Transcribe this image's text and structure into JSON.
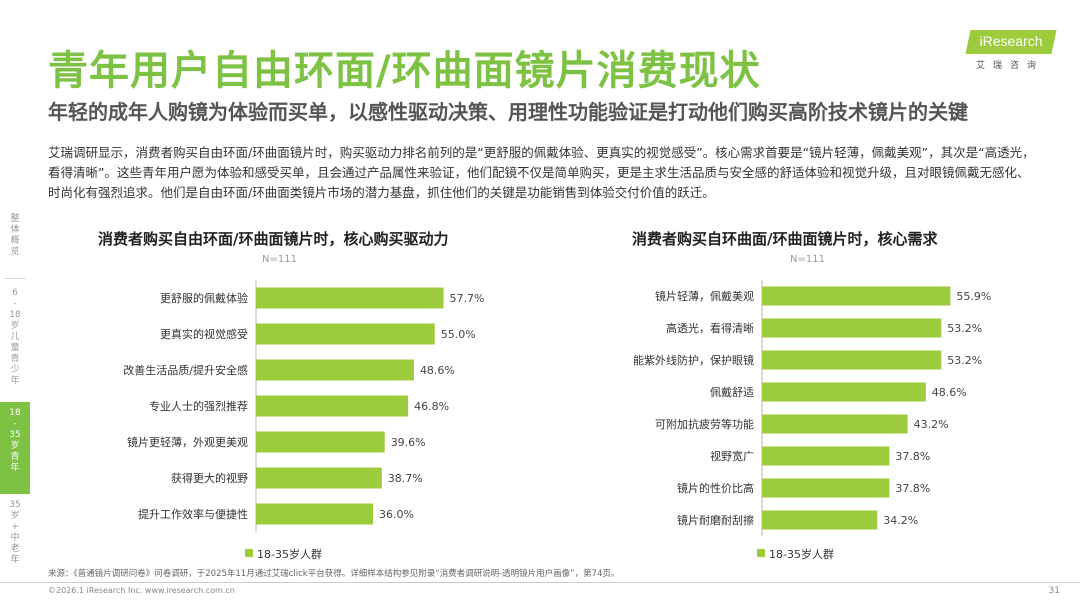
{
  "header": {
    "title": "青年用户自由环面/环曲面镜片消费现状",
    "subtitle": "年轻的成年人购镜为体验而买单，以感性驱动决策、用理性功能验证是打动他们购买高阶技术镜片的关键",
    "description": "艾瑞调研显示，消费者购买自由环面/环曲面镜片时，购买驱动力排名前列的是“更舒服的佩戴体验、更真实的视觉感受”。核心需求首要是“镜片轻薄，佩戴美观”，其次是“高透光，看得清晰”。这些青年用户愿为体验和感受买单，且会通过产品属性来验证，他们配镜不仅是简单购买，更是主求生活品质与安全感的舒适体验和视觉升级，且对眼镜佩戴无感化、时尚化有强烈追求。他们是自由环面/环曲面类镜片市场的潜力基盘，抓住他们的关键是功能销售到体验交付价值的跃迁。"
  },
  "logo": {
    "text": "iResearch",
    "sub": "艾瑞咨询"
  },
  "sidebar": {
    "items": [
      {
        "label": "整\n体\n概\n览",
        "active": false
      },
      {
        "label": "6\n-\n18\n岁\n儿\n童\n青\n少\n年",
        "active": false
      },
      {
        "label": "18\n-\n35\n岁\n青\n年",
        "active": true
      },
      {
        "label": "35\n岁\n+\n中\n老\n年",
        "active": false
      }
    ]
  },
  "colors": {
    "accent": "#7dc243",
    "bar": "#9ccc3c"
  },
  "chart_data": [
    {
      "type": "bar",
      "orientation": "horizontal",
      "title": "消费者购买自由环面/环曲面镜片时，核心购买驱动力",
      "note": "N=111",
      "categories": [
        "更舒服的佩戴体验",
        "更真实的视觉感受",
        "改善生活品质/提升安全感",
        "专业人士的强烈推荐",
        "镜片更轻薄，外观更美观",
        "获得更大的视野",
        "提升工作效率与便捷性"
      ],
      "values": [
        57.7,
        55.0,
        48.6,
        46.8,
        39.6,
        38.7,
        36.0
      ],
      "labels": [
        "57.7%",
        "55.0%",
        "48.6%",
        "46.8%",
        "39.6%",
        "38.7%",
        "36.0%"
      ],
      "legend": "18-35岁人群",
      "xlim": [
        0,
        100
      ]
    },
    {
      "type": "bar",
      "orientation": "horizontal",
      "title": "消费者购买自环曲面/环曲面镜片时，核心需求",
      "note": "N=111",
      "categories": [
        "镜片轻薄，佩戴美观",
        "高透光，看得清晰",
        "能紫外线防护，保护眼镜",
        "佩戴舒适",
        "可附加抗疲劳等功能",
        "视野宽广",
        "镜片的性价比高",
        "镜片耐磨耐刮擦"
      ],
      "values": [
        55.9,
        53.2,
        53.2,
        48.6,
        43.2,
        37.8,
        37.8,
        34.2
      ],
      "labels": [
        "55.9%",
        "53.2%",
        "53.2%",
        "48.6%",
        "43.2%",
        "37.8%",
        "37.8%",
        "34.2%"
      ],
      "legend": "18-35岁人群",
      "xlim": [
        0,
        100
      ]
    }
  ],
  "footer": {
    "source": "来源：《普通镜片调研问卷》问卷调研，于2025年11月通过艾瑞click平台获得。详细样本结构参见附录“消费者调研说明-透明镜片用户画像”，第74页。",
    "copyright": "©2026.1 iResearch Inc.                    www.iresearch.com.cn",
    "page": "31"
  }
}
